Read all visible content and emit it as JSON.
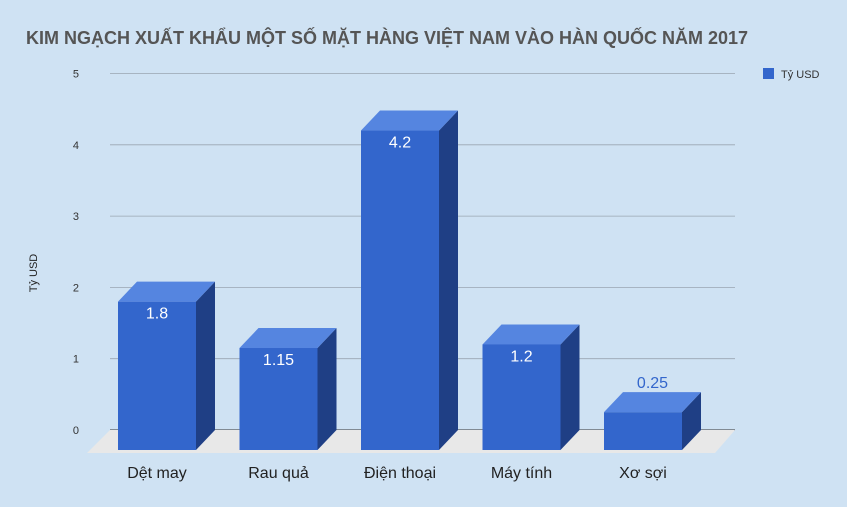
{
  "chart_data": {
    "type": "bar",
    "title": "KIM NGẠCH XUẤT KHẨU MỘT SỐ MẶT HÀNG VIỆT NAM VÀO HÀN QUỐC NĂM 2017",
    "xlabel": "",
    "ylabel": "Tỷ USD",
    "categories": [
      "Dệt may",
      "Rau quả",
      "Điện thoại",
      "Máy tính",
      "Xơ sợi"
    ],
    "series": [
      {
        "name": "Tỷ USD",
        "values": [
          1.8,
          1.15,
          4.2,
          1.2,
          0.25
        ],
        "color": "#3366cc"
      }
    ],
    "data_labels": [
      "1.8",
      "1.15",
      "4.2",
      "1.2",
      "0.25"
    ],
    "ylim": [
      0,
      5
    ],
    "yticks": [
      "0",
      "1",
      "2",
      "3",
      "4",
      "5"
    ],
    "grid": true,
    "legend_position": "top-right",
    "style": "3d-bar"
  },
  "colors": {
    "background": "#cfe2f3",
    "bar_front": "#3366cc",
    "bar_top": "#5585e0",
    "bar_side": "#1f3f85",
    "floor": "#e8e8e8",
    "grid": "#9aa5b1",
    "title": "#555555",
    "value_label_inside": "#ffffff",
    "value_label_outside": "#3366cc"
  }
}
